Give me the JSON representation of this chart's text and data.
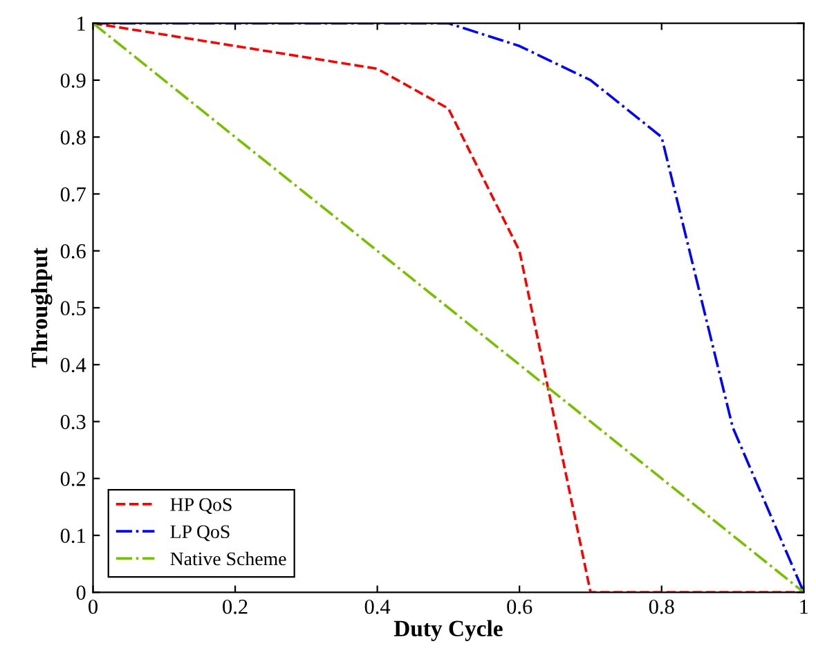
{
  "chart_data": {
    "type": "line",
    "xlabel": "Duty Cycle",
    "ylabel": "Throughput",
    "xlim": [
      0,
      1
    ],
    "ylim": [
      0,
      1
    ],
    "xticks": [
      0,
      0.2,
      0.4,
      0.6,
      0.8,
      1
    ],
    "yticks": [
      0,
      0.1,
      0.2,
      0.3,
      0.4,
      0.5,
      0.6,
      0.7,
      0.8,
      0.9,
      1
    ],
    "grid": false,
    "legend": "bottom left",
    "marker": "none",
    "series": [
      {
        "name": "HP QoS",
        "color": "#ff0000",
        "line_style": "dashed",
        "x": [
          0,
          0.4,
          0.5,
          0.6,
          0.7,
          0.8,
          0.9,
          1
        ],
        "values": [
          1,
          0.92,
          0.85,
          0.6,
          0,
          0,
          0,
          0
        ]
      },
      {
        "name": "LP QoS",
        "color": "#0000ff",
        "line_style": "dashdot",
        "x": [
          0,
          0.5,
          0.6,
          0.7,
          0.8,
          0.9,
          1
        ],
        "values": [
          1,
          1,
          0.96,
          0.9,
          0.8,
          0.29,
          0
        ]
      },
      {
        "name": "Native Scheme",
        "color": "#77c000",
        "line_style": "dashdot",
        "x": [
          0,
          1
        ],
        "values": [
          1,
          0
        ]
      }
    ]
  }
}
